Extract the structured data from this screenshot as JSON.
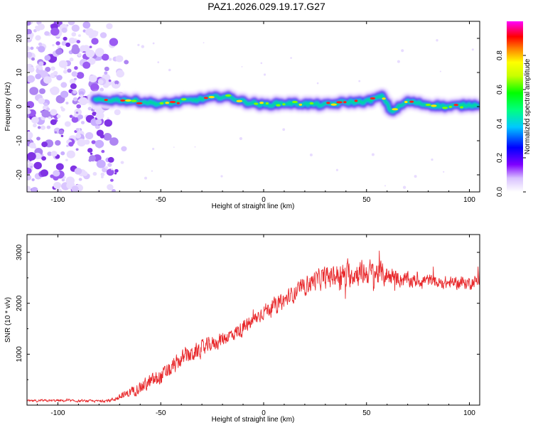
{
  "title": "PAZ1.2026.029.19.17.G27",
  "chart_data": [
    {
      "type": "heatmap",
      "name": "spectrogram",
      "xlabel": "Height of straight line (km)",
      "ylabel": "Frequency (Hz)",
      "xlim": [
        -115,
        105
      ],
      "ylim": [
        -25,
        25
      ],
      "xticks": [
        -100,
        -50,
        0,
        50,
        100
      ],
      "yticks": [
        -20,
        -10,
        0,
        10,
        20
      ],
      "signal_start_km": -82,
      "noise_region_km": [
        -115,
        -72
      ],
      "ridge": {
        "x": [
          -82,
          -70,
          -60,
          -50,
          -40,
          -30,
          -20,
          -15,
          -10,
          0,
          10,
          20,
          30,
          40,
          50,
          55,
          58,
          62,
          70,
          80,
          90,
          100,
          105
        ],
        "y": [
          1.8,
          2.0,
          1.5,
          0.8,
          1.5,
          2.2,
          3.0,
          2.5,
          1.5,
          0.5,
          1.0,
          0.8,
          0.5,
          1.3,
          1.5,
          2.5,
          3.0,
          -1.5,
          1.5,
          0.5,
          0.0,
          0.5,
          0.6
        ]
      },
      "colorbar": {
        "label": "Normalized spectral amplitude",
        "range": [
          0.0,
          1.0
        ],
        "ticks": [
          0.0,
          0.2,
          0.4,
          0.6,
          0.8
        ],
        "tick_labels": [
          "0.0",
          "0.2",
          "0.4",
          "0.6",
          "0.8"
        ],
        "colors": [
          "#ffffff",
          "#8a2be2",
          "#0000ff",
          "#00e5ff",
          "#00ff00",
          "#ffff00",
          "#ff0000",
          "#ff00ff"
        ]
      }
    },
    {
      "type": "line",
      "name": "snr",
      "xlabel": "Height of straight line (km)",
      "ylabel": "SNR (10 * v/v)",
      "xlim": [
        -115,
        105
      ],
      "ylim": [
        0,
        3350
      ],
      "xticks": [
        -100,
        -50,
        0,
        50,
        100
      ],
      "yticks": [
        1000,
        2000,
        3000
      ],
      "color": "#e8282b",
      "x": [
        -115,
        -100,
        -90,
        -80,
        -75,
        -70,
        -65,
        -60,
        -55,
        -50,
        -45,
        -40,
        -35,
        -30,
        -25,
        -20,
        -15,
        -10,
        -5,
        0,
        5,
        10,
        15,
        20,
        25,
        30,
        35,
        40,
        45,
        50,
        55,
        60,
        65,
        70,
        75,
        80,
        85,
        90,
        95,
        100,
        105
      ],
      "y": [
        80,
        90,
        80,
        80,
        90,
        150,
        250,
        350,
        450,
        550,
        700,
        900,
        1000,
        1100,
        1200,
        1300,
        1400,
        1500,
        1650,
        1850,
        1950,
        2050,
        2200,
        2350,
        2450,
        2500,
        2550,
        2550,
        2600,
        2600,
        2600,
        2550,
        2500,
        2450,
        2450,
        2450,
        2400,
        2400,
        2400,
        2400,
        2450
      ],
      "noise_amp": [
        30,
        30,
        30,
        30,
        40,
        70,
        110,
        150,
        180,
        200,
        200,
        200,
        200,
        200,
        180,
        180,
        180,
        180,
        180,
        180,
        180,
        200,
        200,
        220,
        240,
        260,
        280,
        300,
        300,
        300,
        300,
        250,
        200,
        180,
        160,
        150,
        150,
        150,
        150,
        150,
        150
      ]
    }
  ]
}
